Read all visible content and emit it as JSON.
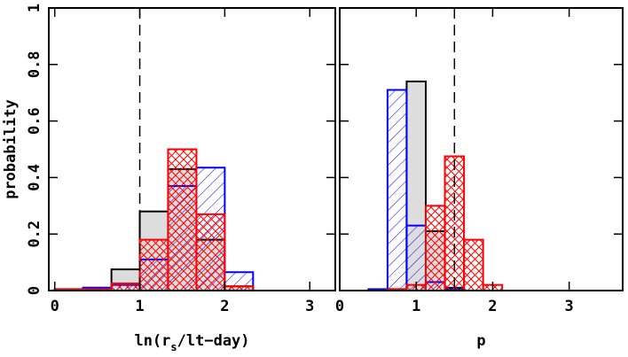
{
  "chart_data": [
    {
      "type": "histogram",
      "xlabel": [
        "ln(r",
        "s",
        "/lt−day)"
      ],
      "ylabel": "probability",
      "bins": [
        0,
        0.333,
        0.667,
        1.0,
        1.333,
        1.667,
        2.0,
        2.333,
        2.667
      ],
      "series": [
        {
          "color": "#000000",
          "fill": "#dddddd",
          "hatch": null,
          "values": [
            0,
            0.01,
            0.075,
            0.28,
            0.43,
            0.18,
            0.015,
            0
          ]
        },
        {
          "color": "#0000ff",
          "fill": "none",
          "hatch": "/",
          "values": [
            0.005,
            0.01,
            0.02,
            0.11,
            0.37,
            0.435,
            0.065,
            0
          ]
        },
        {
          "color": "#ff0000",
          "fill": "none",
          "hatch": "x",
          "values": [
            0.005,
            0.005,
            0.025,
            0.18,
            0.5,
            0.27,
            0.015,
            0
          ]
        }
      ],
      "xlim": [
        -0.07,
        3.3
      ],
      "ylim": [
        0,
        1
      ],
      "xticks": [
        0,
        1,
        2,
        3
      ],
      "yticks": [
        0,
        0.2,
        0.4,
        0.6,
        0.8,
        1
      ],
      "show_ytick_labels": true,
      "vline": 1
    },
    {
      "type": "histogram",
      "xlabel": [
        "p"
      ],
      "bins": [
        0.375,
        0.625,
        0.875,
        1.125,
        1.375,
        1.625,
        1.875,
        2.125,
        2.375
      ],
      "series": [
        {
          "color": "#000000",
          "fill": "#dddddd",
          "hatch": null,
          "values": [
            0,
            0.005,
            0.74,
            0.21,
            0.01,
            0,
            0,
            0
          ]
        },
        {
          "color": "#0000ff",
          "fill": "none",
          "hatch": "/",
          "values": [
            0.005,
            0.71,
            0.23,
            0.03,
            0.005,
            0,
            0,
            0
          ]
        },
        {
          "color": "#ff0000",
          "fill": "none",
          "hatch": "x",
          "values": [
            0,
            0.005,
            0.02,
            0.3,
            0.475,
            0.18,
            0.02,
            0
          ]
        }
      ],
      "xlim": [
        0,
        3.7
      ],
      "ylim": [
        0,
        1
      ],
      "xticks": [
        0,
        1,
        2,
        3
      ],
      "yticks": [
        0,
        0.2,
        0.4,
        0.6,
        0.8,
        1
      ],
      "show_ytick_labels": false,
      "vline": 1.5
    }
  ]
}
